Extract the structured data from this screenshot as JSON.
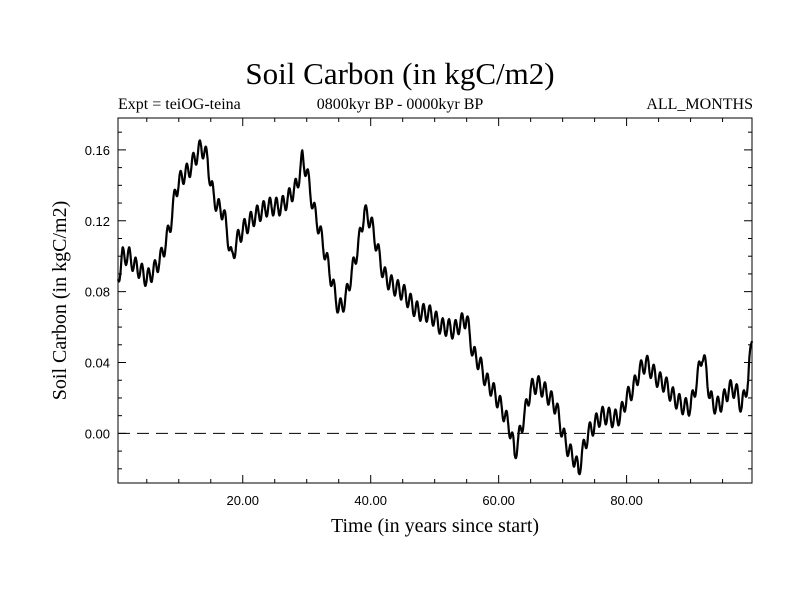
{
  "header": {
    "title": "Soil Carbon (in kgC/m2)",
    "expt": "Expt = teiOG-teina",
    "period": "0800kyr BP - 0000kyr BP",
    "months": "ALL_MONTHS"
  },
  "chart_data": {
    "type": "line",
    "title": "Soil Carbon (in kgC/m2)",
    "xlabel": "Time (in years since start)",
    "ylabel": "Soil Carbon (in kgC/m2)",
    "xlim": [
      0.5,
      99.6
    ],
    "ylim": [
      -0.028,
      0.178
    ],
    "x_ticks": [
      20,
      40,
      60,
      80
    ],
    "x_tick_labels": [
      "20.00",
      "40.00",
      "60.00",
      "80.00"
    ],
    "y_ticks": [
      0.0,
      0.04,
      0.08,
      0.12,
      0.16
    ],
    "y_tick_labels": [
      "0.00",
      "0.04",
      "0.08",
      "0.12",
      "0.16"
    ],
    "zero_line": "dashed",
    "grid": false,
    "series": [
      {
        "name": "Soil Carbon",
        "color": "#000000",
        "x": [
          0.5,
          1.2,
          2.3,
          3.0,
          4.0,
          5.0,
          6.3,
          7.3,
          8.0,
          8.8,
          9.5,
          10.5,
          11.5,
          12.5,
          13.5,
          14.5,
          15.0,
          16.0,
          17.0,
          18.3,
          19.0,
          20.0,
          22.0,
          24.0,
          26.0,
          27.0,
          28.5,
          29.3,
          30.0,
          31.0,
          32.0,
          33.0,
          34.0,
          35.0,
          36.0,
          37.0,
          38.0,
          39.0,
          40.0,
          41.0,
          42.0,
          43.0,
          44.0,
          45.0,
          46.0,
          47.0,
          48.0,
          49.0,
          50.0,
          51.0,
          52.0,
          53.0,
          54.0,
          55.0,
          56.0,
          57.0,
          58.0,
          59.0,
          60.0,
          61.0,
          62.0,
          62.5,
          63.0,
          64.0,
          65.0,
          66.0,
          67.0,
          68.0,
          69.0,
          70.0,
          71.0,
          72.0,
          72.5,
          73.0,
          74.0,
          75.0,
          76.0,
          77.0,
          78.0,
          79.0,
          80.0,
          81.0,
          82.0,
          83.0,
          84.0,
          85.0,
          86.0,
          87.0,
          88.0,
          89.0,
          90.0,
          91.0,
          91.8,
          92.5,
          93.0,
          94.0,
          95.0,
          96.0,
          97.0,
          98.0,
          99.0,
          99.6
        ],
        "y": [
          0.087,
          0.1,
          0.1,
          0.095,
          0.092,
          0.087,
          0.093,
          0.1,
          0.108,
          0.12,
          0.137,
          0.145,
          0.148,
          0.155,
          0.162,
          0.155,
          0.14,
          0.128,
          0.125,
          0.098,
          0.108,
          0.115,
          0.123,
          0.128,
          0.128,
          0.132,
          0.14,
          0.155,
          0.148,
          0.128,
          0.115,
          0.1,
          0.085,
          0.07,
          0.075,
          0.09,
          0.105,
          0.125,
          0.12,
          0.105,
          0.09,
          0.085,
          0.082,
          0.08,
          0.075,
          0.07,
          0.068,
          0.068,
          0.065,
          0.06,
          0.06,
          0.058,
          0.062,
          0.065,
          0.045,
          0.04,
          0.03,
          0.025,
          0.018,
          0.01,
          0.0,
          -0.012,
          -0.005,
          0.01,
          0.025,
          0.028,
          0.025,
          0.02,
          0.015,
          0.0,
          -0.01,
          -0.015,
          -0.022,
          -0.012,
          0.0,
          0.005,
          0.01,
          0.01,
          0.008,
          0.01,
          0.02,
          0.025,
          0.035,
          0.04,
          0.035,
          0.03,
          0.028,
          0.022,
          0.018,
          0.015,
          0.015,
          0.03,
          0.045,
          0.035,
          0.02,
          0.015,
          0.018,
          0.025,
          0.025,
          0.015,
          0.03,
          0.055
        ]
      }
    ]
  }
}
